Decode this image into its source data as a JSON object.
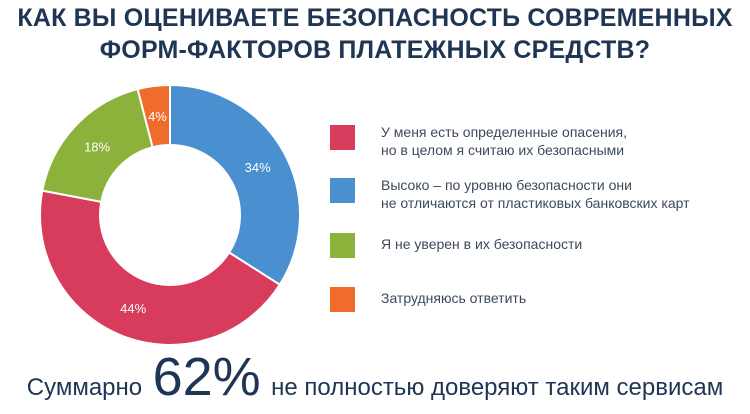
{
  "title": {
    "line1": "КАК ВЫ ОЦЕНИВАЕТЕ БЕЗОПАСНОСТЬ СОВРЕМЕННЫХ",
    "line2": "ФОРМ-ФАКТОРОВ ПЛАТЕЖНЫХ СРЕДСТВ?"
  },
  "chart_data": {
    "type": "pie",
    "donut": true,
    "title": "КАК ВЫ ОЦЕНИВАЕТЕ БЕЗОПАСНОСТЬ СОВРЕМЕННЫХ ФОРМ-ФАКТОРОВ ПЛАТЕЖНЫХ СРЕДСТВ?",
    "start": "top, clockwise",
    "slices": [
      {
        "label": "Высоко – по уровню безопасности они не отличаются от пластиковых банковских карт",
        "value": 34,
        "display": "34%",
        "color": "#4a8fd0"
      },
      {
        "label": "У меня есть определенные опасения, но в целом я считаю их безопасными",
        "value": 44,
        "display": "44%",
        "color": "#d73c5c"
      },
      {
        "label": "Я не уверен в их безопасности",
        "value": 18,
        "display": "18%",
        "color": "#8db23c"
      },
      {
        "label": "Затрудняюсь ответить",
        "value": 4,
        "display": "4%",
        "color": "#ef6c2c"
      }
    ]
  },
  "legend": [
    {
      "line1": "У меня есть определенные опасения,",
      "line2": "но в целом я считаю их безопасными",
      "color": "#d73c5c"
    },
    {
      "line1": "Высоко – по уровню безопасности они",
      "line2": "не отличаются от пластиковых банковских карт",
      "color": "#4a8fd0"
    },
    {
      "line1": "Я не уверен в их безопасности",
      "line2": "",
      "color": "#8db23c"
    },
    {
      "line1": "Затрудняюсь ответить",
      "line2": "",
      "color": "#ef6c2c"
    }
  ],
  "summary": {
    "prefix": "Суммарно",
    "big": "62%",
    "suffix": "не полностью доверяют таким сервисам"
  }
}
